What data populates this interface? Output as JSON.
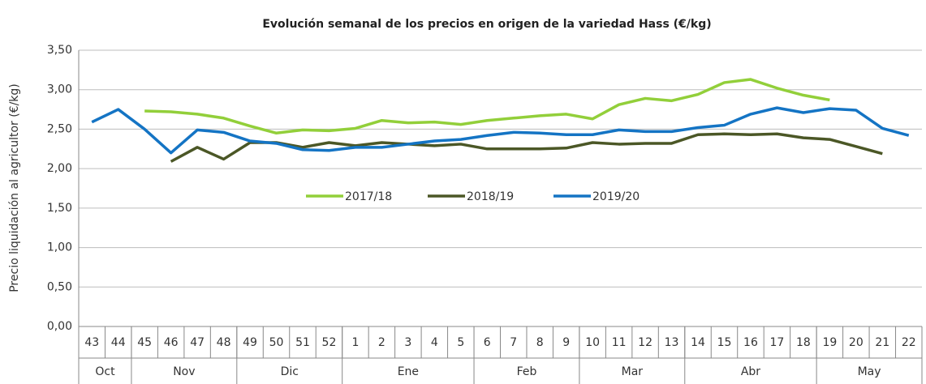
{
  "chart_data": {
    "type": "line",
    "title": "Evolución semanal de los precios en origen de la variedad Hass (€/kg)",
    "y_label": "Precio liquidación al agricultor (€/kg)",
    "categories": [
      "43",
      "44",
      "45",
      "46",
      "47",
      "48",
      "49",
      "50",
      "51",
      "52",
      "1",
      "2",
      "3",
      "4",
      "5",
      "6",
      "7",
      "8",
      "9",
      "10",
      "11",
      "12",
      "13",
      "14",
      "15",
      "16",
      "17",
      "18",
      "19",
      "20",
      "21",
      "22"
    ],
    "x_groups": [
      {
        "label": "Oct",
        "count": 2
      },
      {
        "label": "Nov",
        "count": 4
      },
      {
        "label": "Dic",
        "count": 4
      },
      {
        "label": "Ene",
        "count": 5
      },
      {
        "label": "Feb",
        "count": 4
      },
      {
        "label": "Mar",
        "count": 4
      },
      {
        "label": "Abr",
        "count": 5
      },
      {
        "label": "May",
        "count": 4
      }
    ],
    "series": [
      {
        "name": "2017/18",
        "color": "#92cf3a",
        "values": [
          null,
          null,
          2.73,
          2.72,
          2.69,
          2.64,
          2.54,
          2.45,
          2.49,
          2.48,
          2.51,
          2.61,
          2.58,
          2.59,
          2.56,
          2.61,
          2.64,
          2.67,
          2.69,
          2.63,
          2.81,
          2.89,
          2.86,
          2.94,
          3.09,
          3.13,
          3.02,
          2.93,
          2.87,
          null,
          null,
          null
        ]
      },
      {
        "name": "2018/19",
        "color": "#4b5726",
        "values": [
          null,
          null,
          null,
          2.09,
          2.27,
          2.12,
          2.33,
          2.33,
          2.27,
          2.33,
          2.29,
          2.33,
          2.31,
          2.29,
          2.31,
          2.25,
          2.25,
          2.25,
          2.26,
          2.33,
          2.31,
          2.32,
          2.32,
          2.43,
          2.44,
          2.43,
          2.44,
          2.39,
          2.37,
          2.28,
          2.19,
          null
        ]
      },
      {
        "name": "2019/20",
        "color": "#1474c4",
        "values": [
          2.59,
          2.75,
          2.5,
          2.2,
          2.49,
          2.46,
          2.35,
          2.32,
          2.24,
          2.23,
          2.27,
          2.27,
          2.31,
          2.35,
          2.37,
          2.42,
          2.46,
          2.45,
          2.43,
          2.43,
          2.49,
          2.47,
          2.47,
          2.52,
          2.55,
          2.69,
          2.77,
          2.71,
          2.76,
          2.74,
          2.51,
          2.42
        ]
      }
    ],
    "ylim": [
      0,
      3.5
    ],
    "yticks": [
      {
        "value": 0,
        "label": "0,00"
      },
      {
        "value": 0.5,
        "label": "0,50"
      },
      {
        "value": 1,
        "label": "1,00"
      },
      {
        "value": 1.5,
        "label": "1,50"
      },
      {
        "value": 2,
        "label": "2,00"
      },
      {
        "value": 2.5,
        "label": "2,50"
      },
      {
        "value": 3,
        "label": "3,00"
      },
      {
        "value": 3.5,
        "label": "3,50"
      }
    ],
    "grid": true
  }
}
